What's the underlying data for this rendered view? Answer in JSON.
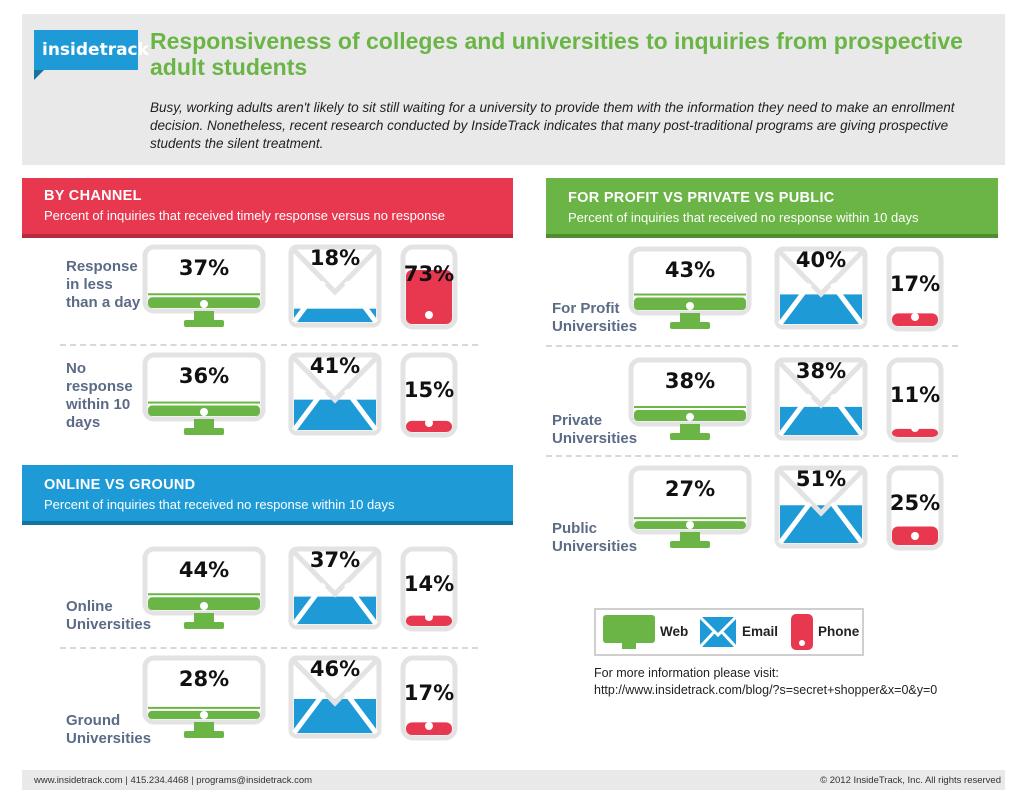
{
  "header": {
    "logo": "insidetrack",
    "title": "Responsiveness of colleges and universities to inquiries from prospective adult students",
    "intro": "Busy, working adults aren't likely to sit still waiting for a university to provide them with the information they need to make an enrollment decision. Nonetheless, recent research conducted by InsideTrack indicates that many post-traditional programs are giving prospective students the silent treatment."
  },
  "by_channel": {
    "title": "BY CHANNEL",
    "subtitle": "Percent of inquiries that received timely response versus no response",
    "rows": [
      {
        "label": "Response in less than a day",
        "web": "37%",
        "email": "18%",
        "phone": "73%"
      },
      {
        "label": "No response within 10 days",
        "web": "36%",
        "email": "41%",
        "phone": "15%"
      }
    ]
  },
  "online_ground": {
    "title": "ONLINE VS GROUND",
    "subtitle": "Percent of inquiries that received no response within 10 days",
    "rows": [
      {
        "label": "Online Universities",
        "web": "44%",
        "email": "37%",
        "phone": "14%"
      },
      {
        "label": "Ground Universities",
        "web": "28%",
        "email": "46%",
        "phone": "17%"
      }
    ]
  },
  "profit_private_public": {
    "title": "FOR PROFIT VS PRIVATE VS PUBLIC",
    "subtitle": "Percent of inquiries that received no response within 10 days",
    "rows": [
      {
        "label": "For Profit Universities",
        "web": "43%",
        "email": "40%",
        "phone": "17%"
      },
      {
        "label": "Private Universities",
        "web": "38%",
        "email": "38%",
        "phone": "11%"
      },
      {
        "label": "Public Universities",
        "web": "27%",
        "email": "51%",
        "phone": "25%"
      }
    ]
  },
  "legend": {
    "web": "Web",
    "email": "Email",
    "phone": "Phone"
  },
  "more_info": {
    "line1": "For more information please visit:",
    "url": "http://www.insidetrack.com/blog/?s=secret+shopper&x=0&y=0"
  },
  "footer": {
    "left": "www.insidetrack.com | 415.234.4468 | programs@insidetrack.com",
    "right": "© 2012 InsideTrack, Inc. All rights reserved"
  },
  "colors": {
    "web": "#6ab546",
    "email": "#1e9bd7",
    "phone": "#e8384f",
    "outline": "#e3e3e3"
  },
  "icons": {
    "web": "monitor-icon",
    "email": "envelope-icon",
    "phone": "phone-icon"
  }
}
